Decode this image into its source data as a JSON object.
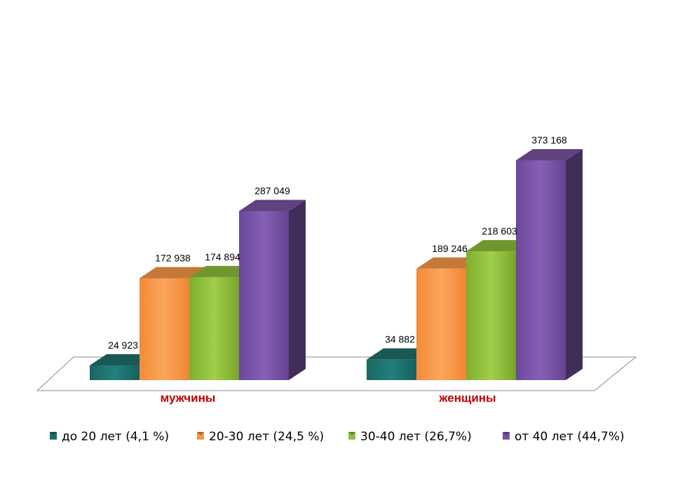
{
  "chart_data": {
    "type": "bar",
    "style": "3d-clustered-column",
    "categories": [
      "мужчины",
      "женщины"
    ],
    "series": [
      {
        "name": "до 20 лет (4,1 %)",
        "values": [
          24923,
          34882
        ],
        "labels": [
          "24 923",
          "34 882"
        ],
        "color": "#1e6f6b"
      },
      {
        "name": "20-30 лет (24,5 %)",
        "values": [
          172938,
          189246
        ],
        "labels": [
          "172 938",
          "189 246"
        ],
        "color": "#f79646"
      },
      {
        "name": "30-40 лет (26,7%)",
        "values": [
          174894,
          218603
        ],
        "labels": [
          "174 894",
          "218 603"
        ],
        "color": "#8fbc3a"
      },
      {
        "name": "от 40 лет (44,7%)",
        "values": [
          287049,
          373168
        ],
        "labels": [
          "287 049",
          "373 168"
        ],
        "color": "#7852a0"
      }
    ],
    "grid": false,
    "legend_position": "bottom"
  }
}
